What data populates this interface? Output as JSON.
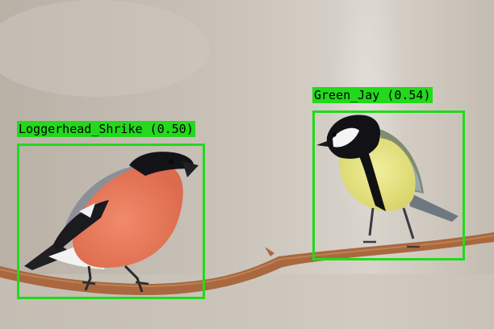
{
  "image": {
    "description_free": true
  },
  "detections": [
    {
      "label": "Loggerhead_Shrike (0.50)",
      "class_name": "Loggerhead_Shrike",
      "confidence": 0.5,
      "box_color": "#22d91c"
    },
    {
      "label": "Green_Jay (0.54)",
      "class_name": "Green_Jay",
      "confidence": 0.54,
      "box_color": "#22d91c"
    }
  ],
  "colors": {
    "background": "#c7c0b6",
    "box": "#22d91c",
    "label_text": "#000000"
  }
}
